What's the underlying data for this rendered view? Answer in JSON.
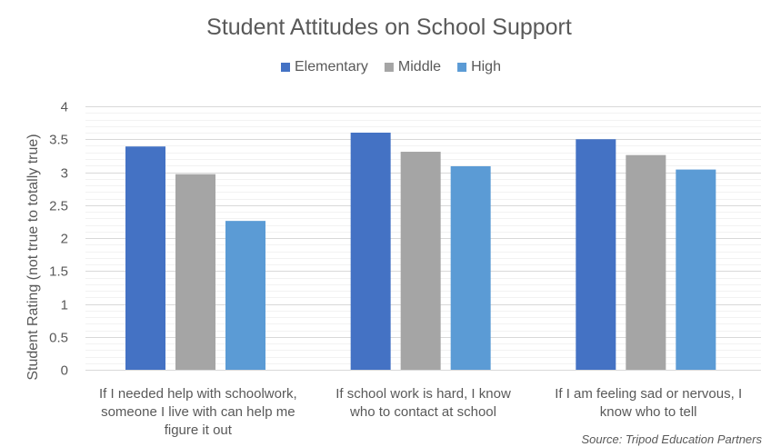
{
  "chart_data": {
    "type": "bar",
    "title": "Student Attitudes on School Support",
    "ylabel": "Student Rating (not true to totally true)",
    "xlabel": "",
    "ylim": [
      0,
      4
    ],
    "y_ticks": [
      "0",
      "0.5",
      "1",
      "1.5",
      "2",
      "2.5",
      "3",
      "3.5",
      "4"
    ],
    "y_tick_values": [
      0,
      0.5,
      1,
      1.5,
      2,
      2.5,
      3,
      3.5,
      4
    ],
    "minor_grid_step": 0.1,
    "legend_position": "top-center",
    "categories": [
      [
        "If I needed help with schoolwork,",
        "someone I live with can help me",
        "figure it out"
      ],
      [
        "If school work is hard, I know",
        "who to contact at school"
      ],
      [
        "If I am feeling sad or nervous, I",
        "know who to tell"
      ]
    ],
    "series": [
      {
        "name": "Elementary",
        "color": "#4472C4",
        "values": [
          3.39,
          3.6,
          3.5
        ]
      },
      {
        "name": "Middle",
        "color": "#A5A5A5",
        "values": [
          2.97,
          3.31,
          3.26
        ]
      },
      {
        "name": "High",
        "color": "#5B9BD5",
        "values": [
          2.26,
          3.09,
          3.04
        ]
      }
    ],
    "source": "Source: Tripod Education Partners"
  }
}
